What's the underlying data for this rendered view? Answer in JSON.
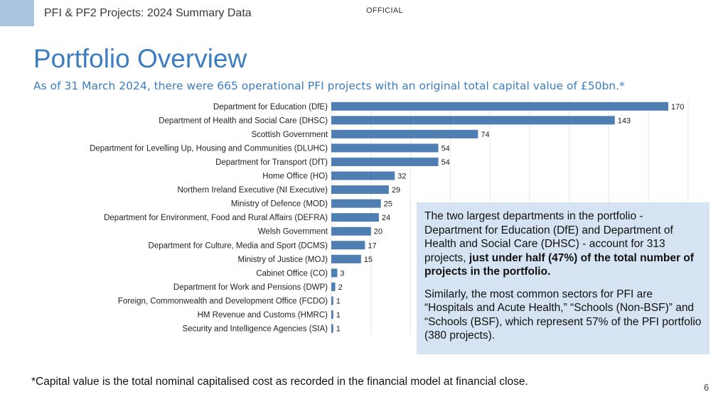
{
  "header": {
    "title": "PFI & PF2 Projects: 2024 Summary Data",
    "classification": "OFFICIAL"
  },
  "slide": {
    "title": "Portfolio Overview",
    "subtitle": "As of 31 March 2024, there were 665 operational PFI projects with an original total capital value of £50bn.*"
  },
  "chart_data": {
    "type": "bar",
    "orientation": "horizontal",
    "categories": [
      "Department for Education (DfE)",
      "Department of Health and Social Care (DHSC)",
      "Scottish Government",
      "Department for Levelling Up, Housing and Communities (DLUHC)",
      "Department for Transport (DfT)",
      "Home Office (HO)",
      "Northern Ireland Executive (NI Executive)",
      "Ministry of Defence (MOD)",
      "Department for Environment, Food and Rural Affairs (DEFRA)",
      "Welsh Government",
      "Department for Culture, Media and Sport (DCMS)",
      "Ministry of Justice (MOJ)",
      "Cabinet Office (CO)",
      "Department for Work and Pensions (DWP)",
      "Foreign, Commonwealth and Development Office (FCDO)",
      "HM Revenue and Customs (HMRC)",
      "Security and Intelligence Agencies (SIA)"
    ],
    "values": [
      170,
      143,
      74,
      54,
      54,
      32,
      29,
      25,
      24,
      20,
      17,
      15,
      3,
      2,
      1,
      1,
      1
    ],
    "xlim": [
      0,
      180
    ],
    "grid": true,
    "bar_color": "#4f7eb3"
  },
  "callout": {
    "p1_text": "The two largest departments in the portfolio - Department for Education (DfE) and Department of Health and Social Care (DHSC) - account for 313 projects, ",
    "p1_bold": "just under half (47%) of the total number of projects in the portfolio.",
    "p2_text": "Similarly, the most common sectors for PFI are “Hospitals and Acute Health,” “Schools (Non-BSF)” and “Schools (BSF), which represent 57% of the PFI portfolio (380 projects)."
  },
  "footnote": "*Capital value is the total nominal capitalised cost as recorded in the financial model at financial close.",
  "page_number": "6"
}
